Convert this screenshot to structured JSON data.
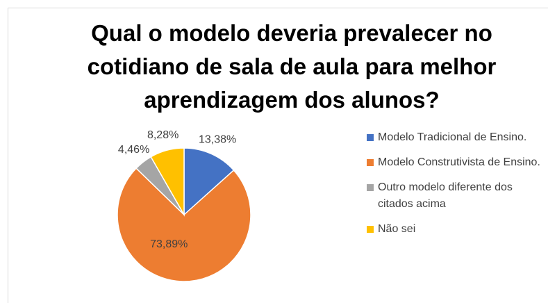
{
  "chart_data": {
    "type": "pie",
    "title": "Qual o modelo deveria prevalecer no cotidiano de sala de aula para melhor aprendizagem dos alunos?",
    "categories": [
      "Modelo Tradicional de Ensino.",
      "Modelo Construtivista de Ensino.",
      "Outro modelo diferente dos citados acima",
      "Não sei"
    ],
    "values": [
      13.38,
      73.89,
      4.46,
      8.28
    ],
    "value_labels": [
      "13,38%",
      "73,89%",
      "4,46%",
      "8,28%"
    ],
    "colors": [
      "#4472c4",
      "#ed7d31",
      "#a5a5a5",
      "#ffc000"
    ]
  }
}
